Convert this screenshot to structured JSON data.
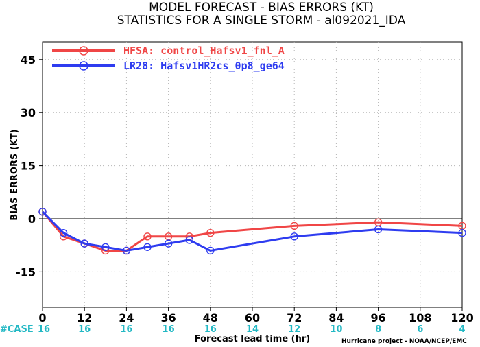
{
  "title_line1": "MODEL FORECAST - BIAS ERRORS (KT)",
  "title_line2": "STATISTICS FOR A SINGLE STORM - al092021_IDA",
  "case_label": "#CASE",
  "credit": "Hurricane project - NOAA/NCEP/EMC",
  "colors": {
    "case": "#22b8c4",
    "zero_line": "#000000"
  },
  "chart_data": {
    "type": "line",
    "xlabel": "Forecast lead time (hr)",
    "ylabel": "BIAS ERRORS (KT)",
    "xlim": [
      0,
      120
    ],
    "ylim": [
      -25,
      50
    ],
    "grid": true,
    "legend_position": "top-left",
    "x_ticks": [
      0,
      12,
      24,
      36,
      48,
      60,
      72,
      84,
      96,
      108,
      120
    ],
    "y_ticks": [
      45,
      30,
      15,
      0,
      -15
    ],
    "case_counts": [
      16,
      16,
      16,
      16,
      16,
      14,
      12,
      10,
      8,
      6,
      4
    ],
    "series": [
      {
        "name": "HFSA: control_Hafsv1_fnl_A",
        "color": "#f04646",
        "x": [
          0,
          6,
          12,
          18,
          24,
          30,
          36,
          42,
          48,
          72,
          96,
          120
        ],
        "y": [
          2,
          -5,
          -7,
          -9,
          -9,
          -5,
          -5,
          -5,
          -4,
          -2,
          -1,
          -2
        ]
      },
      {
        "name": "LR28: Hafsv1HR2cs_0p8_ge64",
        "color": "#2e3cf0",
        "x": [
          0,
          6,
          12,
          18,
          24,
          30,
          36,
          42,
          48,
          72,
          96,
          120
        ],
        "y": [
          2,
          -4,
          -7,
          -8,
          -9,
          -8,
          -7,
          -6,
          -9,
          -5,
          -3,
          -4
        ]
      }
    ]
  }
}
